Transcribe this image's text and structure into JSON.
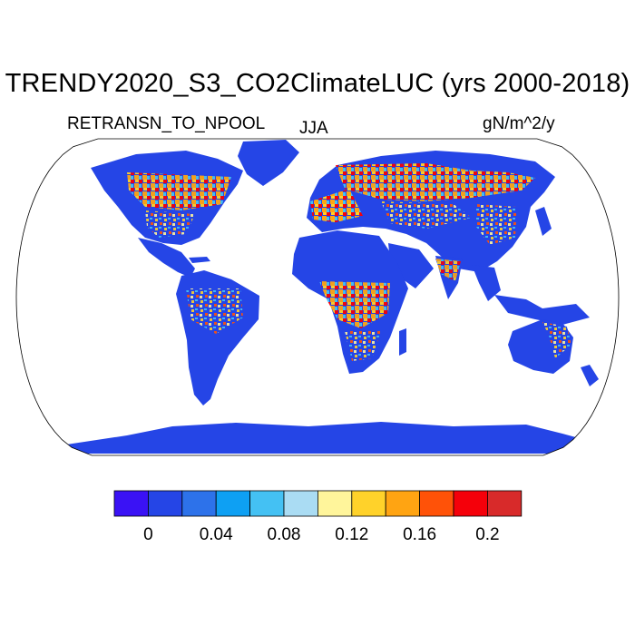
{
  "title": "TRENDY2020_S3_CO2ClimateLUC (yrs 2000-2018)",
  "variable_label": "RETRANSN_TO_NPOOL",
  "season_label": "JJA",
  "units_label": "gN/m^2/y",
  "colorbar": {
    "colors": [
      "#3a12f5",
      "#2545e6",
      "#2d72ea",
      "#0ea0f3",
      "#44c1f3",
      "#aadcf3",
      "#fff59b",
      "#ffd22a",
      "#ffa412",
      "#ff5208",
      "#f5000a",
      "#d82a2a"
    ],
    "tick_labels": [
      "0",
      "0.04",
      "0.08",
      "0.12",
      "0.16",
      "0.2"
    ],
    "tick_values": [
      0,
      0.04,
      0.08,
      0.12,
      0.16,
      0.2
    ],
    "level_step": 0.02
  },
  "chart_data": {
    "type": "heatmap",
    "title": "TRENDY2020_S3_CO2ClimateLUC (yrs 2000-2018)",
    "projection": "Robinson",
    "variable": "RETRANSN_TO_NPOOL",
    "season": "JJA",
    "units": "gN/m^2/y",
    "color_scale_ticks": [
      0,
      0.04,
      0.08,
      0.12,
      0.16,
      0.2
    ],
    "level_step": 0.02
  }
}
